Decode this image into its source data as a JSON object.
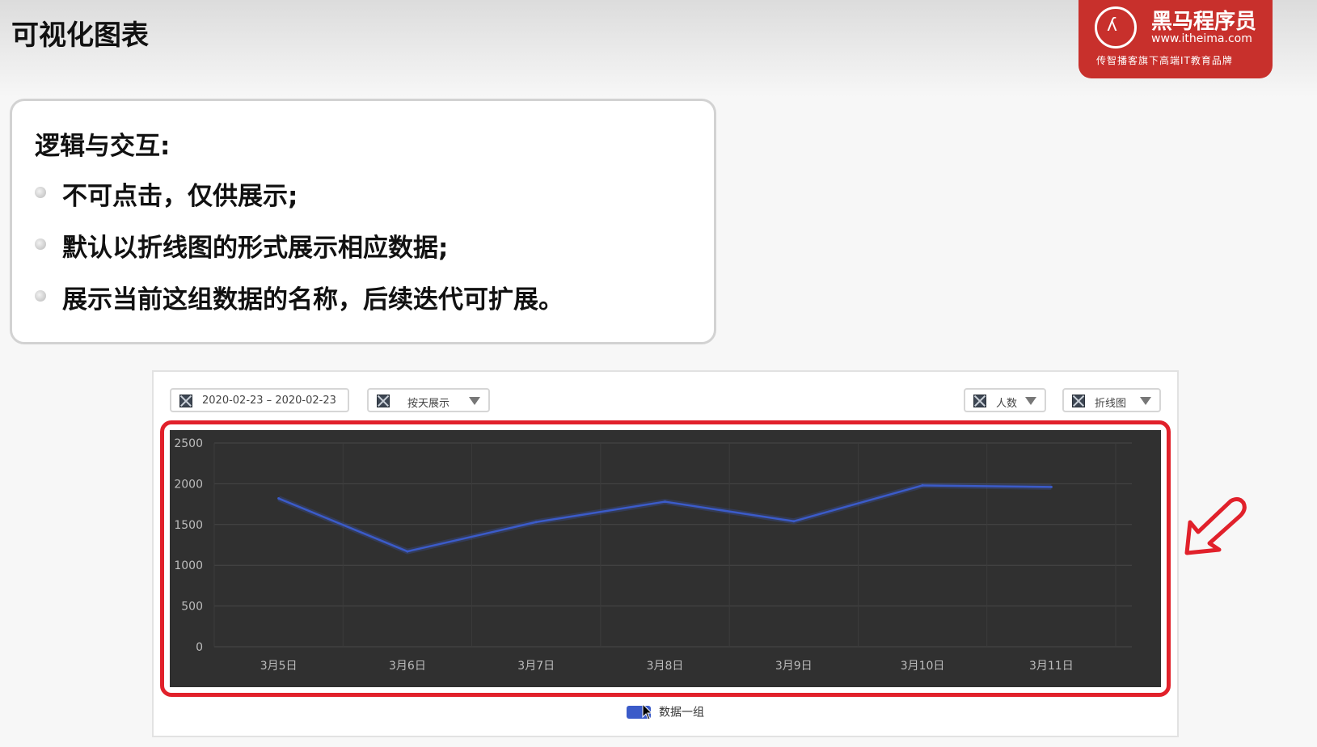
{
  "page_title": "可视化图表",
  "logo": {
    "name": "黑马程序员",
    "url": "www.itheima.com",
    "slogan": "传智播客旗下高端IT教育品牌"
  },
  "notes": {
    "heading": "逻辑与交互:",
    "items": [
      "不可点击，仅供展示;",
      "默认以折线图的形式展示相应数据;",
      "展示当前这组数据的名称，后续迭代可扩展。"
    ]
  },
  "controls": {
    "date_range": "2020-02-23 – 2020-02-23",
    "granularity": "按天展示",
    "metric": "人数",
    "chart_type": "折线图"
  },
  "chart_data": {
    "type": "line",
    "x": [
      "3月5日",
      "3月6日",
      "3月7日",
      "3月8日",
      "3月9日",
      "3月10日",
      "3月11日"
    ],
    "series": [
      {
        "name": "数据一组",
        "values": [
          1820,
          1170,
          1530,
          1780,
          1540,
          1980,
          1960
        ]
      }
    ],
    "ylim": [
      0,
      2500
    ],
    "yticks": [
      0,
      500,
      1000,
      1500,
      2000,
      2500
    ],
    "grid": true,
    "legend_position": "bottom"
  },
  "colors": {
    "series_line": "#3b5bc9",
    "plot_background": "#303030",
    "highlight_frame": "#e1212b"
  },
  "icons": {
    "control_icon": "broken-image-icon",
    "dropdown_icon": "triangle-down-icon",
    "annotation_arrow": "arrow-down-left-icon",
    "cursor": "mouse-pointer-icon"
  }
}
